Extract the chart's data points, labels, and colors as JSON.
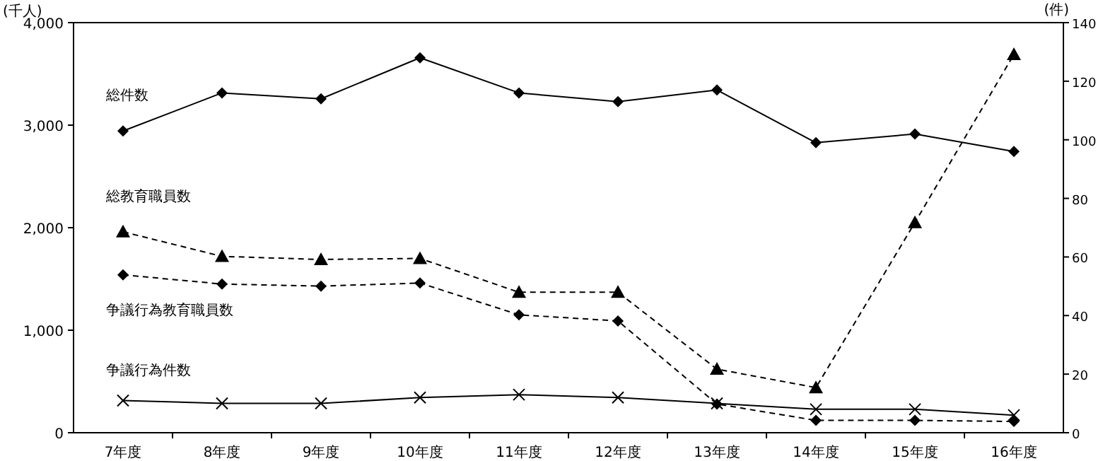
{
  "chart_data": {
    "type": "line",
    "ylabel": "(千人)",
    "y2label": "(件)",
    "categories": [
      "7年度",
      "8年度",
      "9年度",
      "10年度",
      "11年度",
      "12年度",
      "13年度",
      "14年度",
      "15年度",
      "16年度"
    ],
    "ylim": [
      0,
      4000
    ],
    "yticks": [
      {
        "value": 0,
        "label": "0"
      },
      {
        "value": 1000,
        "label": "1,000"
      },
      {
        "value": 2000,
        "label": "2,000"
      },
      {
        "value": 3000,
        "label": "3,000"
      },
      {
        "value": 4000,
        "label": "4,000"
      }
    ],
    "y2lim": [
      0,
      140
    ],
    "y2ticks": [
      0,
      20,
      40,
      60,
      80,
      100,
      120,
      140
    ],
    "legend": false,
    "grid": false,
    "series": [
      {
        "name": "総件数",
        "color": "#000000",
        "axis": "y2",
        "marker": "diamond",
        "line_style": "solid",
        "values": [
          103,
          116,
          114,
          128,
          116,
          113,
          117,
          99,
          102,
          96
        ]
      },
      {
        "name": "総教育職員数",
        "color": "#000000",
        "marker": "triangle",
        "line_style": "dashed",
        "values": [
          1960,
          1720,
          1690,
          1700,
          1370,
          1370,
          620,
          440,
          2050,
          3690
        ]
      },
      {
        "name": "争議行為教育職員数",
        "color": "#000000",
        "marker": "diamond",
        "line_style": "dashed",
        "values": [
          1540,
          1450,
          1430,
          1460,
          1150,
          1090,
          280,
          120,
          120,
          110
        ]
      },
      {
        "name": "争議行為件数",
        "color": "#000000",
        "axis": "y2",
        "marker": "cross",
        "line_style": "solid",
        "values": [
          11,
          10,
          10,
          12,
          13,
          12,
          10,
          8,
          8,
          6
        ]
      }
    ]
  }
}
